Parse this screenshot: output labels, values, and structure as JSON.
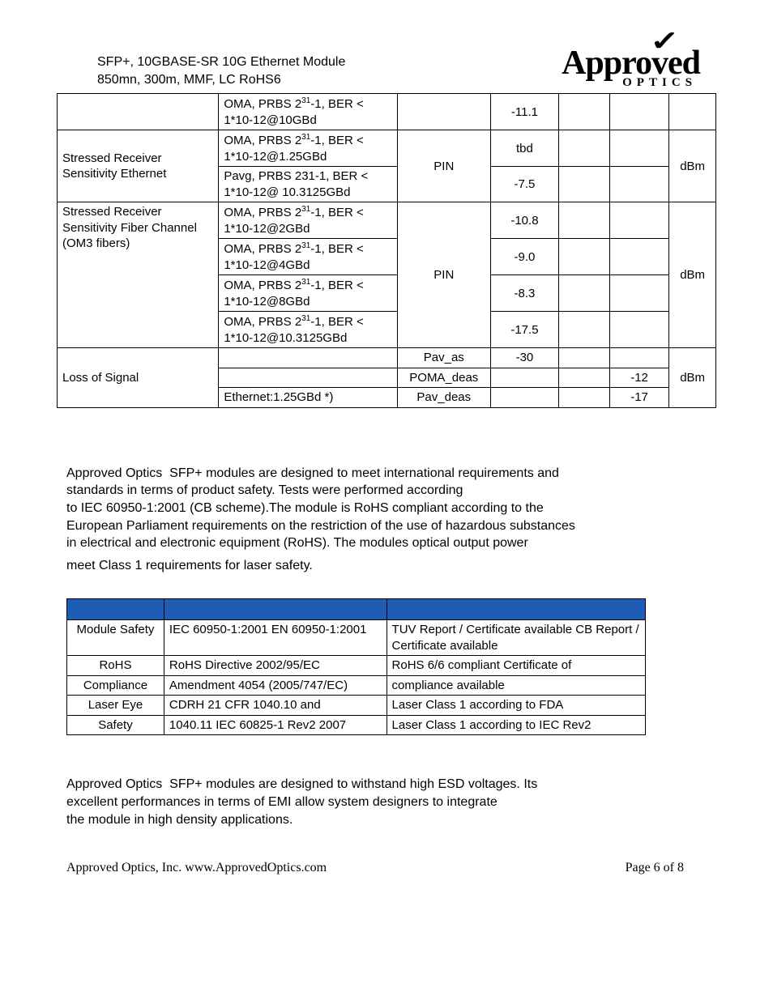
{
  "header": {
    "line1": "SFP+, 10GBASE-SR 10G Ethernet Module",
    "line2": "850mn, 300m, MMF, LC RoHS6"
  },
  "logo": {
    "top": "Approved",
    "bottom": "OPTICS"
  },
  "specTable": {
    "rows": [
      {
        "param": null,
        "cond_html": "OMA, PRBS 2<sup>31</sup>-1, BER < 1*10-12@10GBd",
        "sym": "",
        "min": "-11.1",
        "typ": "",
        "max": "",
        "unit": null
      },
      {
        "param_rowspan": 2,
        "param": "Stressed Receiver Sensitivity Ethernet",
        "cond_html": "OMA, PRBS 2<sup>31</sup>-1, BER < 1*10-12@1.25GBd",
        "sym_rowspan": 2,
        "sym": "PIN",
        "min": "tbd",
        "typ": "",
        "max": "",
        "unit_rowspan": 2,
        "unit": "dBm"
      },
      {
        "cond_html": "Pavg, PRBS 231-1, BER < 1*10-12@ 10.3125GBd",
        "min": "-7.5",
        "typ": "",
        "max": ""
      },
      {
        "param_rowspan": 4,
        "param": "Stressed Receiver Sensitivity Fiber Channel (OM3 fibers)",
        "cond_html": "OMA, PRBS 2<sup>31</sup>-1, BER < 1*10-12@2GBd",
        "sym_rowspan": 4,
        "sym": "PIN",
        "min": "-10.8",
        "typ": "",
        "max": "",
        "unit_rowspan": 4,
        "unit": "dBm"
      },
      {
        "cond_html": "OMA, PRBS 2<sup>31</sup>-1, BER < 1*10-12@4GBd",
        "min": "-9.0",
        "typ": "",
        "max": ""
      },
      {
        "cond_html": "OMA, PRBS 2<sup>31</sup>-1, BER < 1*10-12@8GBd",
        "min": "-8.3",
        "typ": "",
        "max": ""
      },
      {
        "cond_html": "OMA, PRBS 2<sup>31</sup>-1, BER < 1*10-12@10.3125GBd",
        "min": "-17.5",
        "typ": "",
        "max": ""
      },
      {
        "param_rowspan": 3,
        "param": "Loss of Signal",
        "cond_html": "",
        "sym": "Pav_as",
        "min": "-30",
        "typ": "",
        "max": "",
        "unit_rowspan": 3,
        "unit": "dBm"
      },
      {
        "cond_html": "",
        "sym": "POMA_deas",
        "min": "",
        "typ": "",
        "max": "-12"
      },
      {
        "cond_html": "Ethernet:1.25GBd *)",
        "sym": "Pav_deas",
        "min": "",
        "typ": "",
        "max": "-17"
      }
    ],
    "sym_midrow": true
  },
  "para1": "Approved Optics  SFP+ modules are designed to meet international requirements and standards in terms of product safety. Tests were performed according to IEC 60950-1:2001 (CB scheme).The module is RoHS compliant according to the European Parliament requirements on the restriction of the use of hazardous substances in electrical and electronic equipment (RoHS). The modules optical output power meet Class 1 requirements for laser safety.",
  "compTable": {
    "header_color": "#1f5db5",
    "rows": [
      {
        "c1": "Module Safety",
        "c2": "IEC 60950-1:2001 EN 60950-1:2001",
        "c3": "TUV Report / Certificate available CB Report / Certificate available"
      },
      {
        "c1": "RoHS",
        "c2": "RoHS Directive 2002/95/EC",
        "c3": "RoHS 6/6 compliant Certificate of"
      },
      {
        "c1": "Compliance",
        "c2": "Amendment 4054 (2005/747/EC)",
        "c3": "compliance available"
      },
      {
        "c1": "Laser Eye",
        "c2": "CDRH 21 CFR 1040.10 and",
        "c3": "Laser Class 1 according to FDA"
      },
      {
        "c1": "Safety",
        "c2": "1040.11 IEC 60825-1 Rev2 2007",
        "c3": "Laser Class 1 according to IEC Rev2"
      }
    ]
  },
  "para2": "Approved Optics  SFP+ modules are designed to withstand high ESD voltages. Its excellent performances in terms of EMI allow system designers to integrate the module in high density applications.",
  "footer": {
    "left": "Approved Optics, Inc.  www.ApprovedOptics.com",
    "right": "Page 6 of 8"
  }
}
